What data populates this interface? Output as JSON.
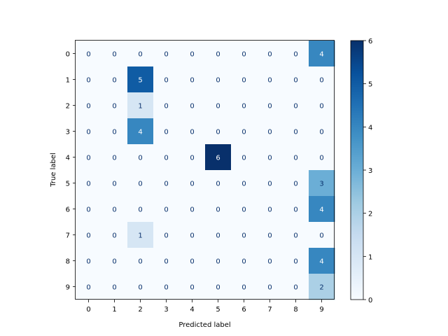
{
  "chart_data": {
    "type": "heatmap",
    "title": "",
    "xlabel": "Predicted label",
    "ylabel": "True label",
    "x_categories": [
      "0",
      "1",
      "2",
      "3",
      "4",
      "5",
      "6",
      "7",
      "8",
      "9"
    ],
    "y_categories": [
      "0",
      "1",
      "2",
      "3",
      "4",
      "5",
      "6",
      "7",
      "8",
      "9"
    ],
    "values": [
      [
        0,
        0,
        0,
        0,
        0,
        0,
        0,
        0,
        0,
        4
      ],
      [
        0,
        0,
        5,
        0,
        0,
        0,
        0,
        0,
        0,
        0
      ],
      [
        0,
        0,
        1,
        0,
        0,
        0,
        0,
        0,
        0,
        0
      ],
      [
        0,
        0,
        4,
        0,
        0,
        0,
        0,
        0,
        0,
        0
      ],
      [
        0,
        0,
        0,
        0,
        0,
        6,
        0,
        0,
        0,
        0
      ],
      [
        0,
        0,
        0,
        0,
        0,
        0,
        0,
        0,
        0,
        3
      ],
      [
        0,
        0,
        0,
        0,
        0,
        0,
        0,
        0,
        0,
        4
      ],
      [
        0,
        0,
        1,
        0,
        0,
        0,
        0,
        0,
        0,
        0
      ],
      [
        0,
        0,
        0,
        0,
        0,
        0,
        0,
        0,
        0,
        4
      ],
      [
        0,
        0,
        0,
        0,
        0,
        0,
        0,
        0,
        0,
        2
      ]
    ],
    "colormap": "Blues",
    "vmin": 0,
    "vmax": 6,
    "colorbar_ticks": [
      0,
      1,
      2,
      3,
      4,
      5,
      6
    ],
    "grid": false
  }
}
